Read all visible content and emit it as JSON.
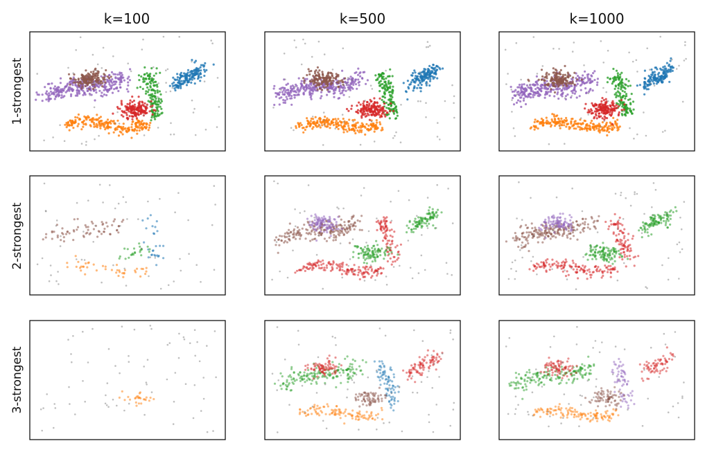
{
  "figure": {
    "columns": [
      "k=100",
      "k=500",
      "k=1000"
    ],
    "rows": [
      "1-strongest",
      "2-strongest",
      "3-strongest"
    ]
  },
  "palette": {
    "blue": "#1f77b4",
    "orange": "#ff7f0e",
    "green": "#2ca02c",
    "red": "#d62728",
    "purple": "#9467bd",
    "brown": "#8c564b",
    "gray": "#7f7f7f"
  },
  "chart_data": {
    "type": "scatter",
    "layout": "3x3 grid of scatter panels",
    "xticks": "none",
    "yticks": "none",
    "grid": false,
    "legend": "none",
    "xlim": [
      0,
      1
    ],
    "ylim": [
      0,
      1
    ],
    "clusters": [
      {
        "shape": "line",
        "from": [
          0.08,
          0.45
        ],
        "to": [
          0.48,
          0.62
        ],
        "spread": 0.04
      },
      {
        "shape": "line",
        "from": [
          0.18,
          0.22
        ],
        "to": [
          0.6,
          0.22
        ],
        "spread": 0.025
      },
      {
        "shape": "line",
        "from": [
          0.6,
          0.62
        ],
        "to": [
          0.66,
          0.32
        ],
        "spread": 0.035
      },
      {
        "shape": "blob",
        "center": [
          0.54,
          0.35
        ],
        "size": [
          0.07,
          0.06
        ]
      },
      {
        "shape": "blob",
        "center": [
          0.3,
          0.6
        ],
        "size": [
          0.07,
          0.06
        ]
      },
      {
        "shape": "line",
        "from": [
          0.74,
          0.52
        ],
        "to": [
          0.88,
          0.72
        ],
        "spread": 0.03
      },
      {
        "shape": "noise"
      }
    ],
    "panels": [
      {
        "row": 1,
        "col": 1,
        "colors": {
          "blue": "blue",
          "orange": "orange",
          "green": "green",
          "red": "red",
          "purple": "purple",
          "brown": "brown"
        }
      },
      {
        "row": 1,
        "col": 2,
        "colors": {
          "blue": "blue",
          "orange": "orange",
          "green": "green",
          "red": "red",
          "purple": "purple",
          "brown": "brown"
        }
      },
      {
        "row": 1,
        "col": 3,
        "colors": {
          "blue": "blue",
          "orange": "orange",
          "green": "green",
          "red": "red",
          "purple": "purple",
          "brown": "brown"
        }
      },
      {
        "row": 2,
        "col": 1,
        "colors": {
          "purple": "brown",
          "orange": "orange",
          "red": "green",
          "green": "blue"
        }
      },
      {
        "row": 2,
        "col": 2,
        "colors": {
          "purple": "brown",
          "brown": "purple",
          "orange": "red",
          "red": "green",
          "green": "red",
          "blue": "green"
        }
      },
      {
        "row": 2,
        "col": 3,
        "colors": {
          "purple": "brown",
          "brown": "purple",
          "orange": "red",
          "red": "green",
          "green": "red",
          "blue": "green"
        }
      },
      {
        "row": 3,
        "col": 1,
        "colors": {
          "red": "orange"
        }
      },
      {
        "row": 3,
        "col": 2,
        "colors": {
          "purple": "green",
          "brown": "red",
          "orange": "orange",
          "red": "brown",
          "green": "blue",
          "blue": "red"
        }
      },
      {
        "row": 3,
        "col": 3,
        "colors": {
          "purple": "green",
          "brown": "red",
          "orange": "orange",
          "red": "brown",
          "green": "purple",
          "blue": "red"
        }
      }
    ]
  }
}
